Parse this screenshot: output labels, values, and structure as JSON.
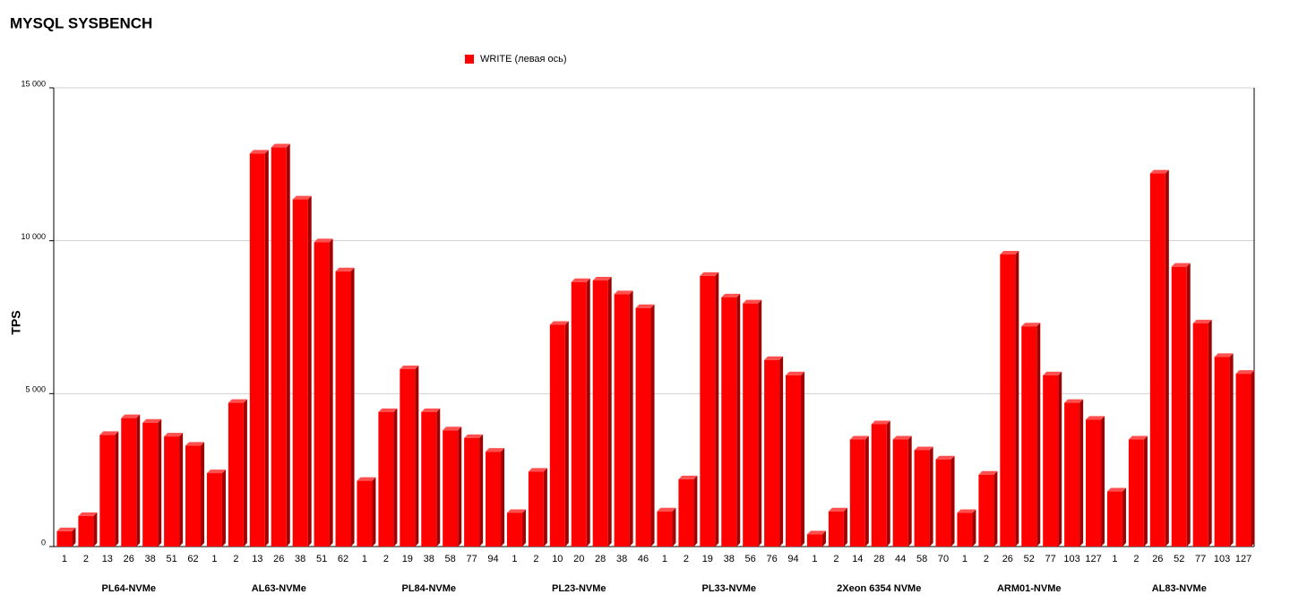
{
  "chart_data": {
    "type": "bar",
    "title": "MYSQL SYSBENCH",
    "ylabel": "TPS",
    "groups": [
      {
        "name": "PL64-NVMe",
        "categories": [
          "1",
          "2",
          "13",
          "26",
          "38",
          "51",
          "62"
        ]
      },
      {
        "name": "AL63-NVMe",
        "categories": [
          "1",
          "2",
          "13",
          "26",
          "38",
          "51",
          "62"
        ]
      },
      {
        "name": "PL84-NVMe",
        "categories": [
          "1",
          "2",
          "19",
          "38",
          "58",
          "77",
          "94"
        ]
      },
      {
        "name": "PL23-NVMe",
        "categories": [
          "1",
          "2",
          "10",
          "20",
          "28",
          "38",
          "46"
        ]
      },
      {
        "name": "PL33-NVMe",
        "categories": [
          "1",
          "2",
          "19",
          "38",
          "56",
          "76",
          "94"
        ]
      },
      {
        "name": "2Xeon 6354 NVMe",
        "categories": [
          "1",
          "2",
          "14",
          "28",
          "44",
          "58",
          "70"
        ]
      },
      {
        "name": "ARM01-NVMe",
        "categories": [
          "1",
          "2",
          "26",
          "52",
          "77",
          "103",
          "127"
        ]
      },
      {
        "name": "AL83-NVMe",
        "categories": [
          "1",
          "2",
          "26",
          "52",
          "77",
          "103",
          "127"
        ]
      }
    ],
    "series": [
      {
        "name": "WRITE (левая ось)",
        "color": "#ff0000",
        "values": [
          500,
          1000,
          3650,
          4200,
          4050,
          3600,
          3300,
          2400,
          4700,
          12850,
          13050,
          11350,
          9950,
          9000,
          2150,
          4400,
          5800,
          4400,
          3800,
          3550,
          3100,
          1100,
          2450,
          7250,
          8650,
          8700,
          8250,
          7800,
          1150,
          2200,
          8850,
          8150,
          7950,
          6100,
          5600,
          400,
          1150,
          3500,
          4000,
          3500,
          3150,
          2850,
          1100,
          2350,
          9550,
          7200,
          5600,
          4700,
          4150,
          1800,
          3500,
          12200,
          9150,
          7300,
          6200,
          5650
        ]
      }
    ],
    "ylim": [
      0,
      15000
    ],
    "yticks": [
      0,
      {
        "value": 5000,
        "label": "5 000"
      },
      {
        "value": 10000,
        "label": "10 000"
      },
      {
        "value": 15000,
        "label": "15 000"
      }
    ],
    "grid": true
  }
}
